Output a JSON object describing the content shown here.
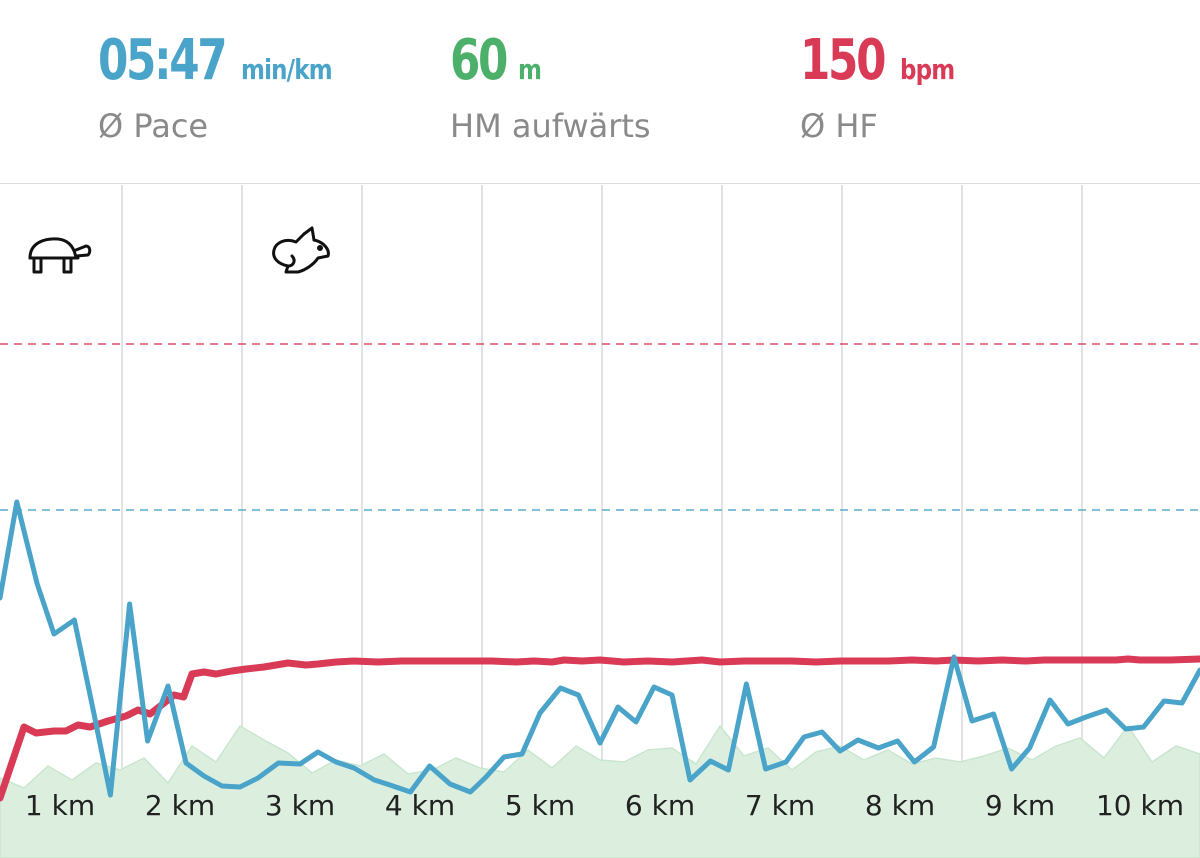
{
  "stats": {
    "pace": {
      "value": "05:47",
      "unit": "min/km",
      "label": "Ø Pace",
      "color": "#4aa3c9"
    },
    "elevation": {
      "value": "60",
      "unit": "m",
      "label": "HM aufwärts",
      "color": "#4caf6a"
    },
    "heart_rate": {
      "value": "150",
      "unit": "bpm",
      "label": "Ø HF",
      "color": "#d93b57"
    }
  },
  "icons": {
    "slow": "turtle-icon",
    "fast": "rabbit-icon"
  },
  "chart_data": {
    "type": "line",
    "x_unit": "km",
    "xlim": [
      0,
      10
    ],
    "x_tick_labels": [
      "1 km",
      "2 km",
      "3 km",
      "4 km",
      "5 km",
      "6 km",
      "7 km",
      "8 km",
      "9 km",
      "10 km"
    ],
    "grid": true,
    "series": [
      {
        "id": "heart_rate",
        "color": "#d93b57",
        "average_line": true,
        "x": [
          0,
          0.2,
          0.3,
          0.45,
          0.55,
          0.65,
          0.75,
          0.9,
          1.05,
          1.15,
          1.25,
          1.4,
          1.45,
          1.53,
          1.6,
          1.7,
          1.8,
          1.93,
          2.05,
          2.2,
          2.4,
          2.55,
          2.65,
          2.8,
          2.95,
          3.15,
          3.35,
          3.5,
          3.7,
          3.85,
          4.1,
          4.3,
          4.45,
          4.6,
          4.7,
          4.85,
          5.0,
          5.2,
          5.4,
          5.6,
          5.85,
          6.0,
          6.2,
          6.4,
          6.6,
          6.8,
          7.0,
          7.2,
          7.4,
          7.6,
          7.8,
          7.95,
          8.15,
          8.35,
          8.55,
          8.7,
          8.9,
          9.1,
          9.3,
          9.4,
          9.5,
          9.6,
          9.75,
          10.0
        ],
        "y": [
          60,
          131,
          125,
          127,
          127,
          133,
          131,
          137,
          142,
          148,
          144,
          158,
          163,
          161,
          184,
          186,
          184,
          187,
          189,
          191,
          195,
          193,
          194,
          196,
          197,
          196,
          197,
          197,
          197,
          197,
          197,
          196,
          197,
          196,
          198,
          197,
          198,
          196,
          197,
          196,
          198,
          196,
          197,
          197,
          197,
          196,
          197,
          197,
          197,
          198,
          197,
          198,
          197,
          198,
          197,
          198,
          198,
          198,
          198,
          199,
          198,
          198,
          198,
          199
        ]
      },
      {
        "id": "pace",
        "color": "#4aa3c9",
        "average_line": true,
        "x": [
          0,
          0.14,
          0.31,
          0.45,
          0.62,
          0.78,
          0.92,
          1.08,
          1.23,
          1.4,
          1.55,
          1.7,
          1.85,
          2.0,
          2.15,
          2.32,
          2.5,
          2.65,
          2.8,
          2.95,
          3.12,
          3.25,
          3.42,
          3.58,
          3.75,
          3.92,
          4.05,
          4.2,
          4.35,
          4.5,
          4.67,
          4.82,
          5.0,
          5.15,
          5.3,
          5.45,
          5.6,
          5.75,
          5.92,
          6.07,
          6.22,
          6.38,
          6.55,
          6.7,
          6.85,
          7.0,
          7.15,
          7.32,
          7.48,
          7.62,
          7.78,
          7.95,
          8.1,
          8.28,
          8.43,
          8.58,
          8.75,
          8.9,
          9.05,
          9.22,
          9.38,
          9.53,
          9.7,
          9.85,
          10.0
        ],
        "y": [
          260,
          356,
          274,
          224,
          238,
          146,
          63,
          254,
          117,
          172,
          95,
          82,
          72,
          71,
          80,
          95,
          94,
          106,
          96,
          90,
          78,
          73,
          66,
          92,
          74,
          66,
          81,
          101,
          104,
          145,
          170,
          163,
          115,
          151,
          136,
          171,
          163,
          78,
          97,
          88,
          174,
          89,
          96,
          121,
          126,
          107,
          118,
          110,
          117,
          96,
          111,
          201,
          137,
          144,
          89,
          110,
          158,
          134,
          141,
          148,
          129,
          131,
          157,
          155,
          188
        ]
      },
      {
        "id": "elevation",
        "color": "#4caf6a",
        "fill": true,
        "x": [
          0,
          0.2,
          0.4,
          0.6,
          0.8,
          1.0,
          1.2,
          1.4,
          1.6,
          1.8,
          2.0,
          2.2,
          2.4,
          2.6,
          2.8,
          3.0,
          3.2,
          3.4,
          3.6,
          3.8,
          4.0,
          4.2,
          4.4,
          4.6,
          4.8,
          5.0,
          5.2,
          5.4,
          5.6,
          5.8,
          6.0,
          6.2,
          6.4,
          6.6,
          6.8,
          7.0,
          7.2,
          7.4,
          7.6,
          7.8,
          8.0,
          8.2,
          8.4,
          8.6,
          8.8,
          9.0,
          9.2,
          9.4,
          9.6,
          9.8,
          10.0
        ],
        "y": [
          80,
          70,
          92,
          78,
          95,
          88,
          100,
          75,
          112,
          96,
          132,
          118,
          105,
          85,
          98,
          92,
          104,
          84,
          88,
          100,
          90,
          86,
          108,
          90,
          112,
          98,
          96,
          108,
          110,
          94,
          132,
          102,
          110,
          88,
          106,
          112,
          98,
          108,
          94,
          100,
          96,
          102,
          110,
          98,
          112,
          120,
          100,
          132,
          96,
          112,
          104
        ]
      }
    ]
  }
}
